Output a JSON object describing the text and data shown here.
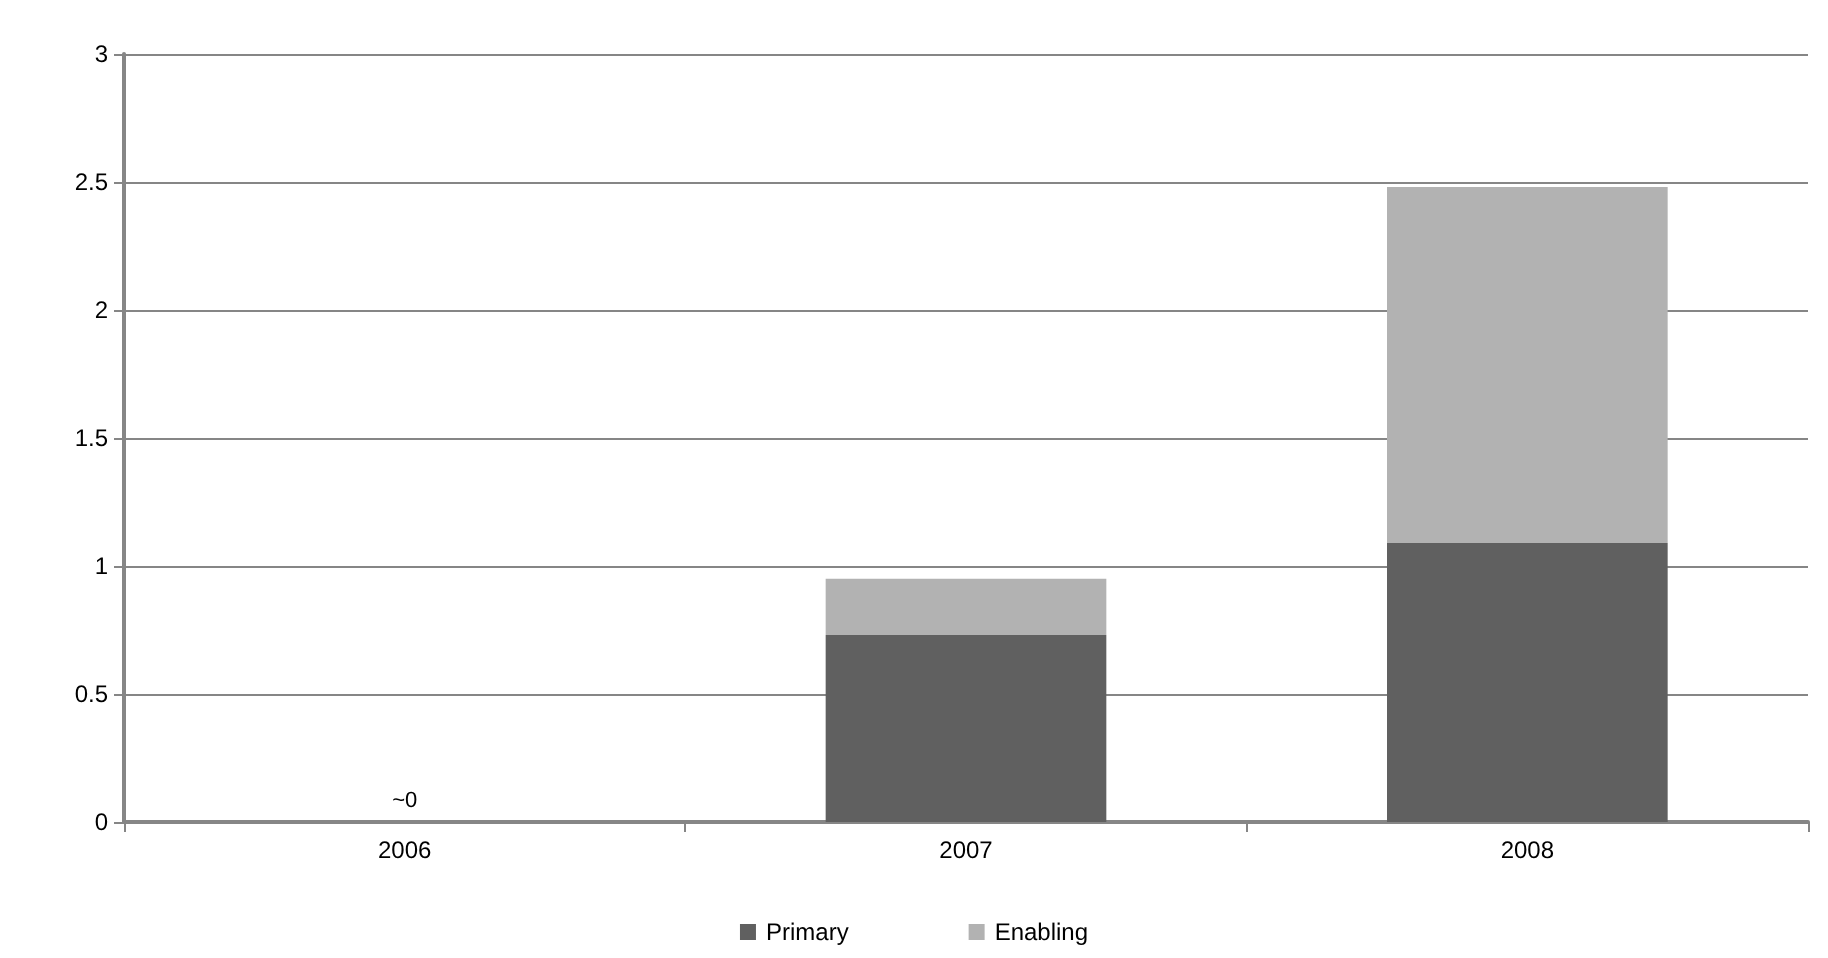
{
  "chart_data": {
    "type": "bar",
    "stacked": true,
    "categories": [
      "2006",
      "2007",
      "2008"
    ],
    "series": [
      {
        "name": "Primary",
        "color": "#606060",
        "values": [
          0,
          0.73,
          1.09
        ]
      },
      {
        "name": "Enabling",
        "color": "#b2b2b2",
        "values": [
          0,
          0.22,
          1.39
        ]
      }
    ],
    "ylim": [
      0,
      3
    ],
    "yticks": [
      0,
      0.5,
      1,
      1.5,
      2,
      2.5,
      3
    ],
    "grid": "y",
    "legend": "bottom",
    "annotations": [
      {
        "text": "~0",
        "x": "2006",
        "y": 0
      }
    ]
  }
}
